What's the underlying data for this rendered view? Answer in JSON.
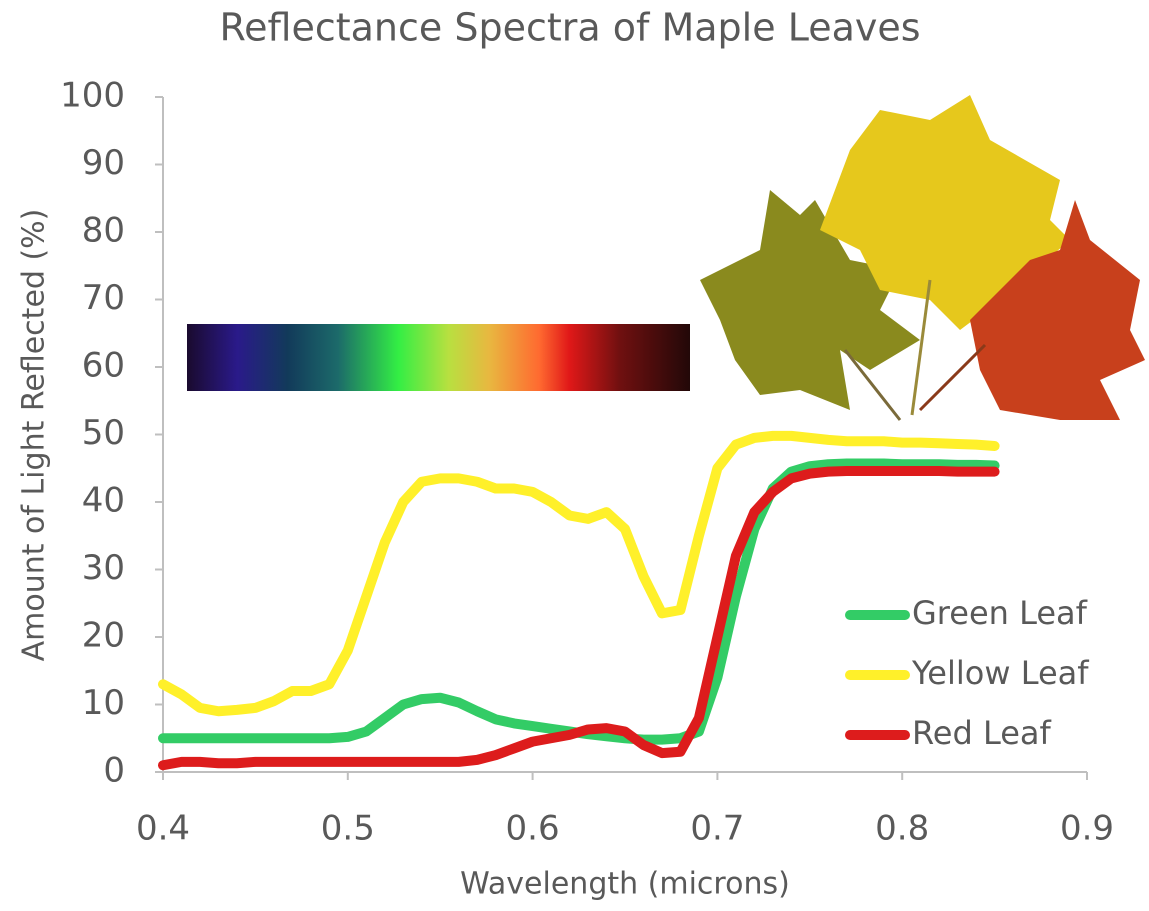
{
  "chart_data": {
    "type": "line",
    "title": "Reflectance Spectra of  Maple Leaves",
    "x_label": "Wavelength (microns)",
    "y_label": "Amount of Light Reflected (%)",
    "x": [
      0.4,
      0.41,
      0.42,
      0.43,
      0.44,
      0.45,
      0.46,
      0.47,
      0.48,
      0.49,
      0.5,
      0.51,
      0.52,
      0.53,
      0.54,
      0.55,
      0.56,
      0.57,
      0.58,
      0.59,
      0.6,
      0.61,
      0.62,
      0.63,
      0.64,
      0.65,
      0.66,
      0.67,
      0.68,
      0.69,
      0.7,
      0.71,
      0.72,
      0.73,
      0.74,
      0.75,
      0.76,
      0.77,
      0.78,
      0.79,
      0.8,
      0.81,
      0.82,
      0.83,
      0.84,
      0.85
    ],
    "series": [
      {
        "name": "Green Leaf",
        "color": "#33cc66",
        "values": [
          5,
          5,
          5,
          5,
          5,
          5,
          5,
          5,
          5,
          5,
          5.2,
          6,
          8,
          10,
          10.8,
          11,
          10.3,
          9,
          7.8,
          7.2,
          6.8,
          6.4,
          6,
          5.6,
          5.3,
          5,
          4.8,
          4.8,
          5,
          6,
          14,
          26,
          36,
          42,
          44.5,
          45.3,
          45.6,
          45.7,
          45.7,
          45.7,
          45.6,
          45.6,
          45.6,
          45.5,
          45.5,
          45.4
        ]
      },
      {
        "name": "Yellow Leaf",
        "color": "#fff02a",
        "values": [
          13,
          11.5,
          9.5,
          9,
          9.2,
          9.5,
          10.5,
          12,
          12,
          13,
          18,
          26,
          34,
          40,
          43,
          43.5,
          43.5,
          43,
          42,
          42,
          41.5,
          40,
          38,
          37.5,
          38.5,
          36,
          29,
          23.5,
          24,
          35,
          45,
          48.5,
          49.5,
          49.8,
          49.8,
          49.5,
          49.2,
          49,
          49,
          49,
          48.8,
          48.8,
          48.7,
          48.6,
          48.5,
          48.3
        ]
      },
      {
        "name": "Red Leaf",
        "color": "#dd1c1c",
        "values": [
          1,
          1.5,
          1.5,
          1.3,
          1.3,
          1.5,
          1.5,
          1.5,
          1.5,
          1.5,
          1.5,
          1.5,
          1.5,
          1.5,
          1.5,
          1.5,
          1.5,
          1.8,
          2.5,
          3.5,
          4.5,
          5,
          5.5,
          6.3,
          6.5,
          6,
          4,
          2.8,
          3,
          8,
          20,
          32,
          38.5,
          41.5,
          43.5,
          44.2,
          44.5,
          44.6,
          44.6,
          44.6,
          44.6,
          44.6,
          44.6,
          44.5,
          44.5,
          44.5
        ]
      }
    ],
    "xlim": [
      0.4,
      0.9
    ],
    "xticks": [
      0.4,
      0.5,
      0.6,
      0.7,
      0.8,
      0.9
    ],
    "ylim": [
      0,
      100
    ],
    "yticks": [
      0,
      10,
      20,
      30,
      40,
      50,
      60,
      70,
      80,
      90,
      100
    ],
    "legend": "lower right",
    "line_width": 10
  }
}
